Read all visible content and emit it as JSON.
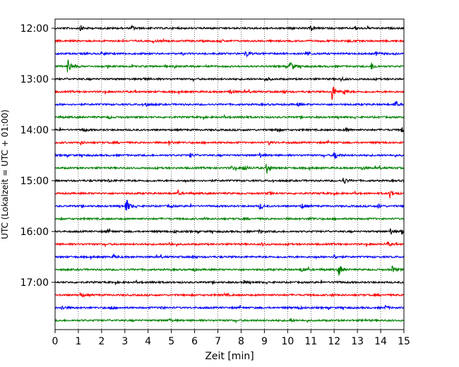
{
  "chart_data": {
    "type": "line",
    "subtype": "helicorder",
    "xlabel": "Zeit  [min]",
    "ylabel": "UTC (Lokalzeit = UTC + 01:00)",
    "xlim": [
      0,
      15
    ],
    "x_ticks": [
      "0",
      "1",
      "2",
      "3",
      "4",
      "5",
      "6",
      "7",
      "8",
      "9",
      "10",
      "11",
      "12",
      "13",
      "14",
      "15"
    ],
    "y_tick_labels": [
      "12:00",
      "13:00",
      "14:00",
      "15:00",
      "16:00",
      "17:00"
    ],
    "grid": "vertical dotted",
    "trace_colors": [
      "#000000",
      "#ff0000",
      "#0000ff",
      "#008000"
    ],
    "traces": [
      {
        "start": "12:00",
        "color": "#000000",
        "events": [
          [
            1.1,
            0.6
          ],
          [
            3.3,
            0.5
          ],
          [
            10.1,
            0.4
          ],
          [
            11.0,
            0.7
          ],
          [
            12.9,
            0.4
          ]
        ]
      },
      {
        "start": "12:15",
        "color": "#ff0000",
        "events": [
          [
            4.2,
            0.3
          ],
          [
            7.1,
            0.3
          ],
          [
            12.6,
            0.3
          ]
        ]
      },
      {
        "start": "12:30",
        "color": "#0000ff",
        "events": [
          [
            2.0,
            0.3
          ],
          [
            8.2,
            1.0
          ],
          [
            10.8,
            0.8
          ],
          [
            13.8,
            0.4
          ]
        ]
      },
      {
        "start": "12:45",
        "color": "#008000",
        "events": [
          [
            0.55,
            2.0
          ],
          [
            10.1,
            1.6
          ],
          [
            13.6,
            0.9
          ]
        ]
      },
      {
        "start": "13:00",
        "color": "#000000",
        "events": [
          [
            3.8,
            0.4
          ],
          [
            9.1,
            0.4
          ],
          [
            12.3,
            0.4
          ]
        ]
      },
      {
        "start": "13:15",
        "color": "#ff0000",
        "events": [
          [
            7.5,
            0.6
          ],
          [
            9.8,
            0.5
          ],
          [
            11.9,
            2.4
          ],
          [
            12.4,
            0.8
          ]
        ]
      },
      {
        "start": "13:30",
        "color": "#0000ff",
        "events": [
          [
            3.9,
            0.6
          ],
          [
            10.4,
            0.4
          ],
          [
            14.6,
            0.7
          ]
        ]
      },
      {
        "start": "13:45",
        "color": "#008000",
        "events": [
          [
            2.3,
            0.3
          ],
          [
            8.0,
            0.3
          ]
        ]
      },
      {
        "start": "14:00",
        "color": "#000000",
        "events": [
          [
            1.2,
            0.5
          ],
          [
            9.5,
            0.6
          ],
          [
            12.5,
            0.5
          ],
          [
            14.9,
            0.6
          ]
        ]
      },
      {
        "start": "14:15",
        "color": "#ff0000",
        "events": [
          [
            1.1,
            0.4
          ],
          [
            4.9,
            0.5
          ],
          [
            9.2,
            0.4
          ]
        ]
      },
      {
        "start": "14:30",
        "color": "#0000ff",
        "events": [
          [
            5.8,
            0.5
          ],
          [
            8.8,
            0.6
          ],
          [
            12.0,
            1.3
          ]
        ]
      },
      {
        "start": "14:45",
        "color": "#008000",
        "events": [
          [
            7.6,
            0.4
          ],
          [
            8.1,
            0.8
          ],
          [
            9.1,
            1.3
          ],
          [
            13.2,
            0.4
          ]
        ]
      },
      {
        "start": "15:00",
        "color": "#000000",
        "events": [
          [
            2.3,
            0.3
          ],
          [
            12.4,
            0.9
          ]
        ]
      },
      {
        "start": "15:15",
        "color": "#ff0000",
        "events": [
          [
            5.3,
            0.4
          ],
          [
            9.2,
            0.3
          ],
          [
            14.4,
            1.0
          ]
        ]
      },
      {
        "start": "15:30",
        "color": "#0000ff",
        "events": [
          [
            3.05,
            2.0
          ],
          [
            4.9,
            0.4
          ],
          [
            8.8,
            0.8
          ],
          [
            10.6,
            0.6
          ],
          [
            13.9,
            0.5
          ]
        ]
      },
      {
        "start": "15:45",
        "color": "#008000",
        "events": [
          [
            6.4,
            0.3
          ],
          [
            11.0,
            0.3
          ]
        ]
      },
      {
        "start": "16:00",
        "color": "#000000",
        "events": [
          [
            2.2,
            0.4
          ],
          [
            5.1,
            0.4
          ],
          [
            8.8,
            0.4
          ],
          [
            14.4,
            0.9
          ],
          [
            14.9,
            0.6
          ]
        ]
      },
      {
        "start": "16:15",
        "color": "#ff0000",
        "events": [
          [
            4.9,
            0.4
          ],
          [
            8.9,
            0.4
          ],
          [
            14.3,
            0.5
          ]
        ]
      },
      {
        "start": "16:30",
        "color": "#0000ff",
        "events": [
          [
            2.5,
            0.5
          ],
          [
            5.9,
            0.4
          ],
          [
            12.0,
            0.5
          ]
        ]
      },
      {
        "start": "16:45",
        "color": "#008000",
        "events": [
          [
            5.9,
            0.5
          ],
          [
            10.6,
            0.5
          ],
          [
            12.2,
            1.6
          ],
          [
            14.5,
            0.8
          ]
        ]
      },
      {
        "start": "17:00",
        "color": "#000000",
        "events": [
          [
            4.2,
            0.3
          ],
          [
            8.1,
            0.3
          ],
          [
            12.0,
            0.3
          ]
        ]
      },
      {
        "start": "17:15",
        "color": "#ff0000",
        "events": [
          [
            1.1,
            0.6
          ],
          [
            7.3,
            0.4
          ],
          [
            11.9,
            0.3
          ]
        ]
      },
      {
        "start": "17:30",
        "color": "#0000ff",
        "events": [
          [
            0.3,
            0.5
          ],
          [
            2.4,
            0.5
          ],
          [
            4.5,
            0.4
          ],
          [
            10.5,
            0.4
          ],
          [
            14.2,
            0.4
          ]
        ]
      },
      {
        "start": "17:45",
        "color": "#008000",
        "events": [
          [
            4.9,
            0.4
          ],
          [
            10.1,
            0.3
          ],
          [
            13.2,
            0.3
          ]
        ]
      }
    ]
  }
}
